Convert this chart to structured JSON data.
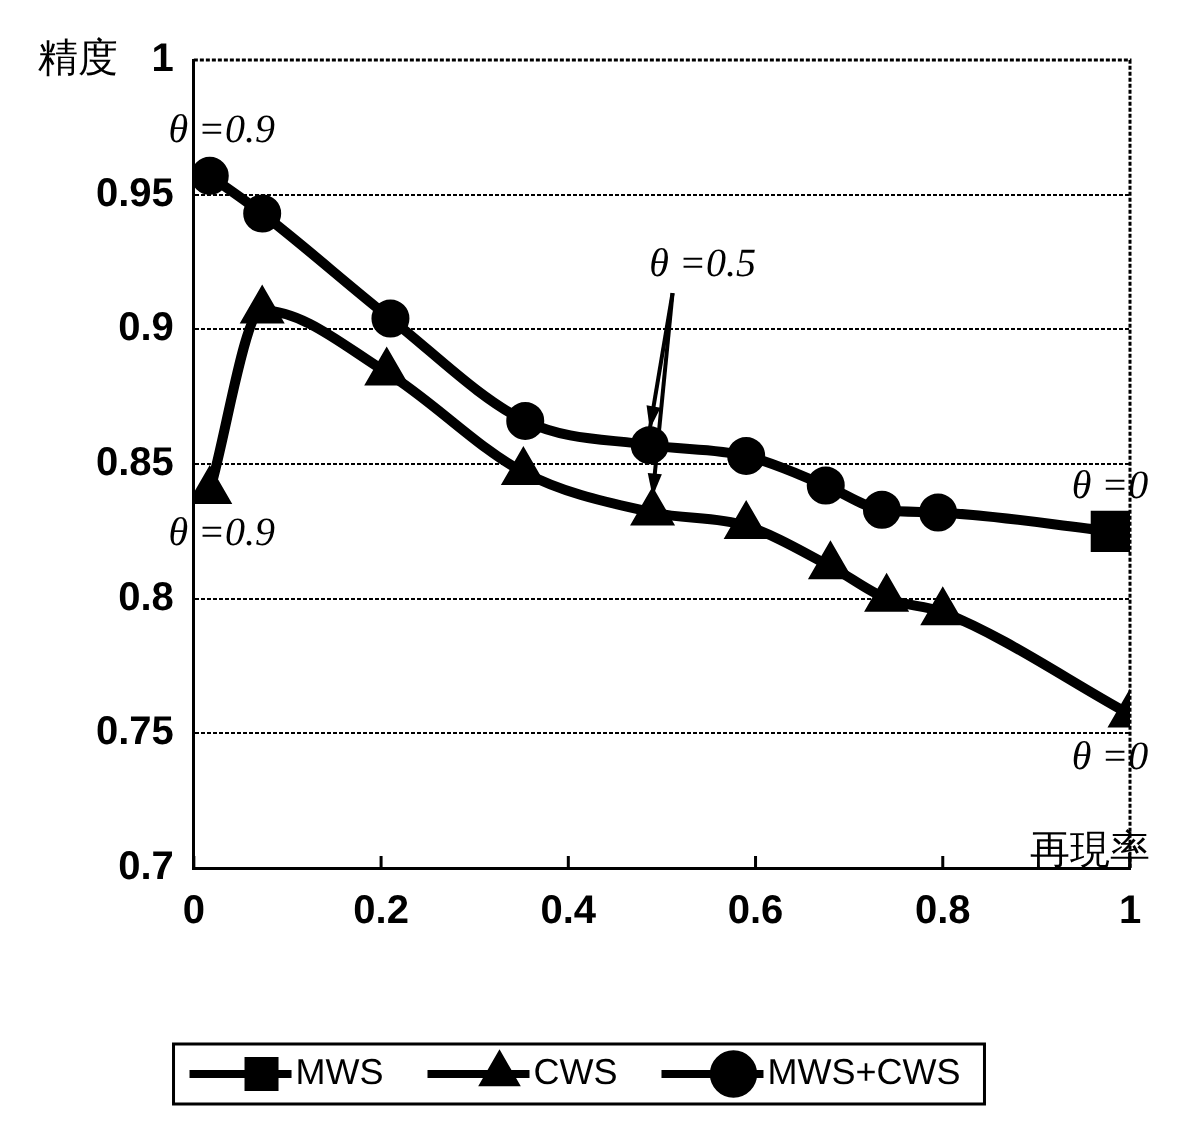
{
  "chart_data": {
    "type": "line",
    "xlabel": "再現率",
    "ylabel": "精度",
    "xlim": [
      0,
      1
    ],
    "xticks": [
      0,
      0.2,
      0.4,
      0.6,
      0.8,
      1
    ],
    "ylim": [
      0.7,
      1
    ],
    "yticks": [
      0.7,
      0.75,
      0.8,
      0.85,
      0.9,
      0.95,
      1
    ],
    "grid": "y",
    "legend": "bottom",
    "line_style": "solid",
    "series": [
      {
        "name": "MWS",
        "color": "#000000",
        "marker": "square",
        "x": [
          0.98
        ],
        "values": [
          0.825
        ]
      },
      {
        "name": "CWS",
        "color": "#000000",
        "marker": "triangle",
        "x": [
          0.017,
          0.073,
          0.206,
          0.352,
          0.49,
          0.59,
          0.68,
          0.74,
          0.8,
          1.0
        ],
        "values": [
          0.84,
          0.907,
          0.884,
          0.847,
          0.832,
          0.827,
          0.812,
          0.8,
          0.795,
          0.757
        ]
      },
      {
        "name": "MWS+CWS",
        "color": "#000000",
        "marker": "circle",
        "x": [
          0.017,
          0.073,
          0.21,
          0.354,
          0.487,
          0.59,
          0.675,
          0.735,
          0.795,
          0.98
        ],
        "values": [
          0.957,
          0.943,
          0.904,
          0.866,
          0.857,
          0.853,
          0.842,
          0.833,
          0.832,
          0.825
        ]
      }
    ],
    "annotations": [
      {
        "text": "θ =0.9",
        "x": 0.017,
        "y": 0.957
      },
      {
        "text": "θ =0.9",
        "x": 0.017,
        "y": 0.84
      },
      {
        "text": "θ =0.5",
        "x": 0.49,
        "y": 0.857
      },
      {
        "text": "θ =0",
        "x": 0.98,
        "y": 0.825
      },
      {
        "text": "θ =0",
        "x": 1.0,
        "y": 0.757
      }
    ]
  }
}
